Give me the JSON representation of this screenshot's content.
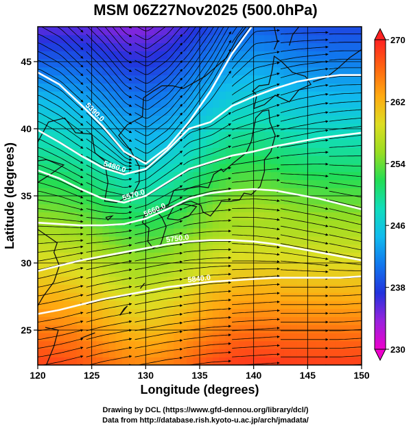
{
  "title": "MSM 06Z27Nov2025 (500.0hPa)",
  "chart_data": {
    "type": "heatmap",
    "title": "MSM 06Z27Nov2025 (500.0hPa)",
    "xlabel": "Longitude (degrees)",
    "ylabel": "Latitude  (degrees)",
    "xlim": [
      120,
      150
    ],
    "ylim": [
      22.4,
      47.6
    ],
    "x_ticks": [
      "120",
      "125",
      "130",
      "135",
      "140",
      "145",
      "150"
    ],
    "y_ticks": [
      "25",
      "30",
      "35",
      "40",
      "45"
    ],
    "x_tick_values": [
      120,
      125,
      130,
      135,
      140,
      145,
      150
    ],
    "y_tick_values": [
      25,
      30,
      35,
      40,
      45
    ],
    "grid": true,
    "colorbar": {
      "min": 230,
      "max": 270,
      "ticks": [
        "230",
        "238",
        "246",
        "254",
        "262",
        "270"
      ],
      "tick_values": [
        230,
        238,
        246,
        254,
        262,
        270
      ],
      "colors": [
        "#ee00cc",
        "#9922dd",
        "#2233dd",
        "#1177ee",
        "#11bbee",
        "#11ddbb",
        "#22dd55",
        "#99dd22",
        "#dddd22",
        "#ffaa11",
        "#ff6611",
        "#ff2222"
      ]
    },
    "contours": [
      {
        "label": "5390.0",
        "points": [
          [
            120,
            44.2
          ],
          [
            122,
            43.3
          ],
          [
            124,
            41.8
          ],
          [
            126,
            40.2
          ],
          [
            128,
            38.3
          ],
          [
            130,
            37.4
          ],
          [
            132,
            38.6
          ],
          [
            134,
            40.5
          ],
          [
            136,
            42.8
          ],
          [
            138,
            45.6
          ],
          [
            140,
            47.8
          ]
        ]
      },
      {
        "label": "5480.0",
        "points": [
          [
            120,
            39.9
          ],
          [
            122,
            39.0
          ],
          [
            124,
            38.0
          ],
          [
            126,
            37.1
          ],
          [
            128,
            36.6
          ],
          [
            130,
            37.0
          ],
          [
            132,
            38.4
          ],
          [
            134,
            40.0
          ],
          [
            136,
            40.5
          ],
          [
            138,
            41.7
          ],
          [
            140,
            42.4
          ],
          [
            142,
            43.0
          ],
          [
            144,
            43.5
          ],
          [
            146,
            43.8
          ],
          [
            148,
            44.0
          ],
          [
            150,
            44.0
          ]
        ]
      },
      {
        "label": "5570.0",
        "points": [
          [
            120,
            36.9
          ],
          [
            122,
            36.3
          ],
          [
            124,
            35.5
          ],
          [
            126,
            34.8
          ],
          [
            128,
            34.5
          ],
          [
            130,
            35.0
          ],
          [
            132,
            36.0
          ],
          [
            134,
            37.0
          ],
          [
            136,
            37.5
          ],
          [
            138,
            38.0
          ],
          [
            140,
            38.3
          ],
          [
            142,
            38.7
          ],
          [
            144,
            39.0
          ],
          [
            146,
            39.3
          ],
          [
            148,
            39.5
          ],
          [
            150,
            39.7
          ]
        ]
      },
      {
        "label": "5660.0",
        "points": [
          [
            120,
            33.0
          ],
          [
            122,
            32.9
          ],
          [
            124,
            32.8
          ],
          [
            126,
            32.8
          ],
          [
            128,
            32.9
          ],
          [
            130,
            33.3
          ],
          [
            132,
            34.0
          ],
          [
            134,
            34.8
          ],
          [
            136,
            35.2
          ],
          [
            138,
            35.4
          ],
          [
            140,
            35.5
          ],
          [
            142,
            35.4
          ],
          [
            144,
            35.1
          ],
          [
            146,
            34.8
          ],
          [
            148,
            34.4
          ],
          [
            150,
            34.0
          ]
        ]
      },
      {
        "label": "5750.0",
        "points": [
          [
            120,
            29.4
          ],
          [
            122,
            29.8
          ],
          [
            124,
            30.2
          ],
          [
            126,
            30.5
          ],
          [
            128,
            30.8
          ],
          [
            130,
            31.1
          ],
          [
            132,
            31.4
          ],
          [
            134,
            31.6
          ],
          [
            136,
            31.7
          ],
          [
            138,
            31.7
          ],
          [
            140,
            31.6
          ],
          [
            142,
            31.4
          ],
          [
            144,
            31.1
          ],
          [
            146,
            30.8
          ],
          [
            148,
            30.5
          ],
          [
            150,
            30.2
          ]
        ]
      },
      {
        "label": "5840.0",
        "points": [
          [
            120,
            26.2
          ],
          [
            122,
            26.5
          ],
          [
            124,
            26.9
          ],
          [
            126,
            27.3
          ],
          [
            128,
            27.6
          ],
          [
            130,
            27.9
          ],
          [
            132,
            28.2
          ],
          [
            134,
            28.4
          ],
          [
            136,
            28.6
          ],
          [
            138,
            28.7
          ],
          [
            140,
            28.8
          ],
          [
            142,
            28.9
          ],
          [
            144,
            28.9
          ],
          [
            146,
            28.9
          ],
          [
            148,
            28.9
          ],
          [
            150,
            29.0
          ]
        ]
      }
    ]
  },
  "credits": {
    "line1": "Drawing by DCL (https://www.gfd-dennou.org/library/dcl/)",
    "line2": "Data from http://database.rish.kyoto-u.ac.jp/arch/jmadata/"
  }
}
